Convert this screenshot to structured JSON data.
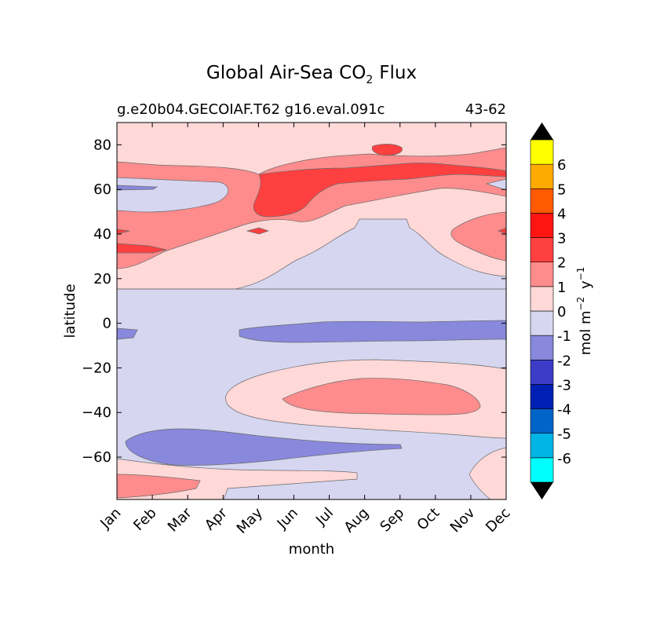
{
  "chart_data": {
    "type": "heatmap",
    "title_main": "Global Air-Sea CO",
    "title_sub": "2",
    "title_tail": "Flux",
    "subtitle_left": "g.e20b04.GECOIAF.T62 g16.eval.091c",
    "subtitle_right": "43-62",
    "xlabel": "month",
    "ylabel": "latitude",
    "x_ticks": [
      "Jan",
      "Feb",
      "Mar",
      "Apr",
      "May",
      "Jun",
      "Jul",
      "Aug",
      "Sep",
      "Oct",
      "Nov",
      "Dec"
    ],
    "x_range": [
      0,
      11
    ],
    "y_ticks": [
      80,
      60,
      40,
      20,
      0,
      -20,
      -40,
      -60
    ],
    "y_tick_labels": [
      "80",
      "60",
      "40",
      "20",
      "0",
      "−20",
      "−40",
      "−60"
    ],
    "y_range": [
      -79,
      90
    ],
    "colorbar": {
      "label": "mol m",
      "label_exp1": "−2",
      "label_mid": " y",
      "label_exp2": "−1",
      "levels": [
        "-6",
        "-5",
        "-4",
        "-3",
        "-2",
        "-1",
        "0",
        "1",
        "2",
        "3",
        "4",
        "5",
        "6"
      ],
      "colors": [
        "#00ffff",
        "#00b4e6",
        "#0064c8",
        "#0020b4",
        "#3c3cc8",
        "#8888dc",
        "#d6d6f0",
        "#ffd8d8",
        "#ff8c8c",
        "#ff4040",
        "#ff1414",
        "#ff5a00",
        "#ffaa00",
        "#ffff00"
      ],
      "extend_colors": {
        "low": "#000000",
        "high": "#000000"
      }
    },
    "fill_colors": {
      "neg1": "#8888dc",
      "zero": "#d6d6f0",
      "pos0": "#ffd8d8",
      "pos1": "#ff8c8c",
      "pos2": "#ff4040"
    }
  }
}
